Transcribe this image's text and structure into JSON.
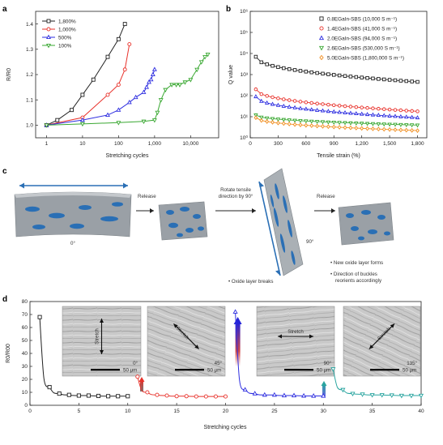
{
  "panels": {
    "a": {
      "letter": "a"
    },
    "b": {
      "letter": "b"
    },
    "c": {
      "letter": "c"
    },
    "d": {
      "letter": "d"
    }
  },
  "colors": {
    "black": "#222222",
    "red": "#e8312a",
    "blue": "#2e2ee0",
    "green": "#3aa832",
    "orange": "#f08c1c",
    "teal": "#2aa5a0",
    "film": "#9aa0a6",
    "oxide": "#2a6fb5"
  },
  "panel_c": {
    "labels": {
      "release1": "Release",
      "rotate_line1": "Rotate tensile",
      "rotate_line2": "direction by 90°",
      "release2": "Release",
      "angle0": "0°",
      "angle90": "90°",
      "oxide_breaks": "• Oxide layer breaks",
      "new_oxide": "• New oxide layer forms",
      "buckles_line1": "• Direction of buckles",
      "buckles_line2": "reorients accordingly"
    }
  },
  "panel_d_insets": [
    {
      "angle": "0°",
      "stretch": "Stretch",
      "scale": "50 μm"
    },
    {
      "angle": "45°",
      "stretch": "Stretch",
      "scale": "50 μm"
    },
    {
      "angle": "90°",
      "stretch": "Stretch",
      "scale": "50 μm"
    },
    {
      "angle": "135°",
      "stretch": "Stretch",
      "scale": "50 μm"
    }
  ],
  "chart_data": [
    {
      "id": "a",
      "type": "line",
      "xlabel": "Stretching cycles",
      "ylabel": "R/R0",
      "xscale": "log",
      "xlim": [
        0.5,
        60000
      ],
      "ylim": [
        0.95,
        1.45
      ],
      "xticks": [
        1,
        10,
        100,
        1000,
        10000
      ],
      "xtick_labels": [
        "1",
        "10",
        "100",
        "1,000",
        "10,000"
      ],
      "yticks": [
        1.0,
        1.1,
        1.2,
        1.3,
        1.4
      ],
      "ytick_labels": [
        "1.0",
        "1.1",
        "1.2",
        "1.3",
        "1.4"
      ],
      "legend_position": "top-left",
      "series": [
        {
          "name": "1,800%",
          "color": "#222222",
          "marker": "square",
          "x": [
            1,
            2,
            5,
            10,
            20,
            50,
            100,
            150
          ],
          "y": [
            1.0,
            1.02,
            1.06,
            1.12,
            1.18,
            1.27,
            1.34,
            1.4
          ]
        },
        {
          "name": "1,000%",
          "color": "#e8312a",
          "marker": "circle",
          "x": [
            1,
            10,
            50,
            100,
            150,
            200
          ],
          "y": [
            1.0,
            1.03,
            1.12,
            1.16,
            1.22,
            1.32
          ]
        },
        {
          "name": "500%",
          "color": "#2e2ee0",
          "marker": "triangle-up",
          "x": [
            1,
            10,
            50,
            100,
            200,
            300,
            500,
            600,
            700,
            800,
            900,
            1000
          ],
          "y": [
            1.0,
            1.02,
            1.04,
            1.06,
            1.09,
            1.11,
            1.13,
            1.15,
            1.17,
            1.18,
            1.2,
            1.22
          ]
        },
        {
          "name": "100%",
          "color": "#3aa832",
          "marker": "triangle-down",
          "x": [
            1,
            10,
            100,
            500,
            1000,
            1200,
            1500,
            2000,
            3000,
            4000,
            5000,
            7000,
            10000,
            15000,
            20000,
            25000,
            30000
          ],
          "y": [
            1.0,
            1.005,
            1.01,
            1.015,
            1.02,
            1.05,
            1.1,
            1.14,
            1.16,
            1.16,
            1.16,
            1.17,
            1.18,
            1.22,
            1.25,
            1.27,
            1.28
          ]
        }
      ]
    },
    {
      "id": "b",
      "type": "line",
      "xlabel": "Tensile strain (%)",
      "ylabel": "Q value",
      "yscale": "log",
      "xlim": [
        0,
        1900
      ],
      "ylim": [
        1,
        1000000
      ],
      "xticks": [
        0,
        300,
        600,
        900,
        1200,
        1500,
        1800
      ],
      "xtick_labels": [
        "0",
        "300",
        "600",
        "900",
        "1,200",
        "1,500",
        "1,800"
      ],
      "yticks": [
        1,
        10,
        100,
        1000,
        10000,
        100000,
        1000000
      ],
      "ytick_labels": [
        "10⁰",
        "10¹",
        "10²",
        "10³",
        "10⁴",
        "10⁵",
        "10⁶"
      ],
      "legend_position": "top-right",
      "series": [
        {
          "name": "0.8EGaIn-SBS (10,000 S m⁻¹)",
          "color": "#222222",
          "marker": "square",
          "start": 7000,
          "end": 450
        },
        {
          "name": "1.4EGaIn-SBS (41,000 S m⁻¹)",
          "color": "#e8312a",
          "marker": "circle",
          "start": 200,
          "end": 18
        },
        {
          "name": "2.0EGaIn-SBS (94,000 S m⁻¹)",
          "color": "#2e2ee0",
          "marker": "triangle-up",
          "start": 90,
          "end": 9
        },
        {
          "name": "2.6EGaIn-SBS (530,000 S m⁻¹)",
          "color": "#3aa832",
          "marker": "triangle-down",
          "start": 12,
          "end": 4
        },
        {
          "name": "5.0EGaIn-SBS (1,800,000 S m⁻¹)",
          "color": "#f08c1c",
          "marker": "diamond",
          "start": 9,
          "end": 2.2
        }
      ]
    },
    {
      "id": "d",
      "type": "line",
      "xlabel": "Stretching cycles",
      "ylabel": "R0/R00",
      "xlim": [
        0,
        40
      ],
      "ylim": [
        0,
        80
      ],
      "xticks": [
        0,
        5,
        10,
        15,
        20,
        25,
        30,
        35,
        40
      ],
      "yticks": [
        0,
        10,
        20,
        30,
        40,
        50,
        60,
        70,
        80
      ],
      "series": [
        {
          "name": "0°",
          "color": "#222222",
          "marker": "square",
          "x": [
            1,
            2,
            3,
            4,
            5,
            6,
            7,
            8,
            9,
            10
          ],
          "y": [
            68,
            14,
            9,
            8,
            7.5,
            7.5,
            7.2,
            7,
            7,
            7
          ]
        },
        {
          "name": "45°",
          "color": "#e8312a",
          "marker": "circle",
          "x": [
            11,
            12,
            13,
            14,
            15,
            16,
            17,
            18,
            19,
            20
          ],
          "y": [
            22,
            10,
            8,
            7.5,
            7,
            7,
            6.8,
            6.8,
            6.8,
            6.8
          ]
        },
        {
          "name": "90°",
          "color": "#2e2ee0",
          "marker": "triangle-up",
          "x": [
            21,
            22,
            23,
            24,
            25,
            26,
            27,
            28,
            29,
            30
          ],
          "y": [
            72,
            12,
            9,
            8,
            8,
            7.5,
            7.5,
            7.3,
            7.2,
            7.2
          ]
        },
        {
          "name": "135°",
          "color": "#2aa5a0",
          "marker": "triangle-down",
          "x": [
            31,
            32,
            33,
            34,
            35,
            36,
            37,
            38,
            39,
            40
          ],
          "y": [
            28,
            12,
            9,
            8.5,
            8,
            8,
            7.8,
            7.5,
            7.5,
            7.5
          ]
        }
      ]
    }
  ]
}
